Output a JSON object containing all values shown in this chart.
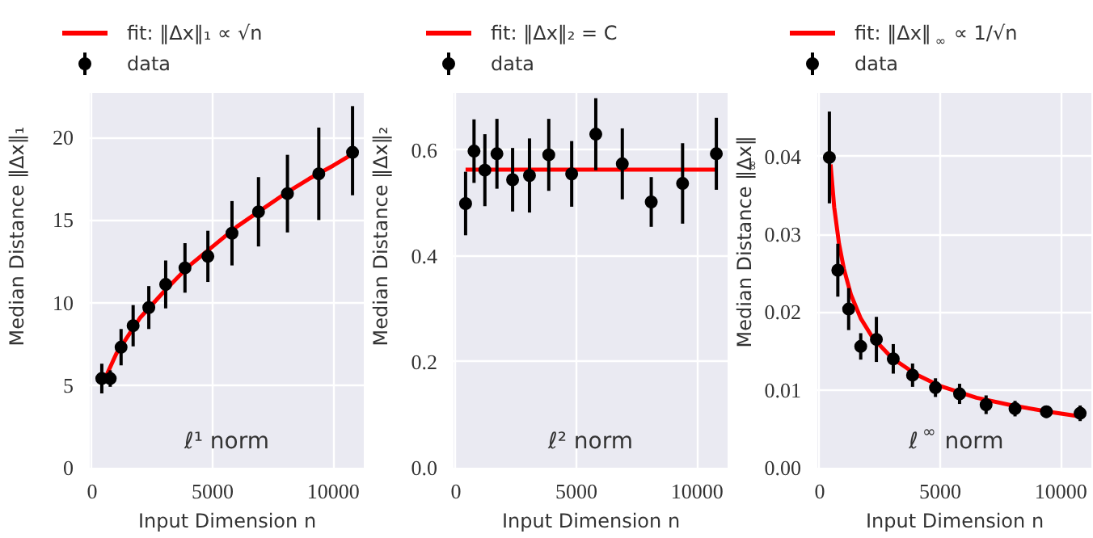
{
  "chart_data": [
    {
      "type": "scatter",
      "xlabel": "Input Dimension n",
      "ylabel": "Median Distance ‖Δx‖₁",
      "annotations": [
        "ℓ¹ norm"
      ],
      "xlim": [
        -100,
        11300
      ],
      "ylim": [
        0,
        22.7
      ],
      "xticks": [
        0,
        5000,
        10000
      ],
      "yticks": [
        0,
        5,
        10,
        15,
        20
      ],
      "grid": true,
      "legend": "top",
      "series": [
        {
          "name": "fit: ‖Δx‖₁ ∝ √n",
          "type": "line",
          "color": "#ff0000",
          "line_style": "solid",
          "x": [
            500,
            1000,
            2000,
            3000,
            4000,
            5000,
            6000,
            7000,
            8000,
            9000,
            10000,
            10800
          ],
          "values": [
            5.3,
            6.9,
            9.1,
            10.7,
            12.2,
            13.4,
            14.6,
            15.6,
            16.6,
            17.5,
            18.3,
            19.0
          ]
        },
        {
          "name": "data",
          "color": "#000000",
          "marker": "circle",
          "x": [
            400,
            750,
            1200,
            1700,
            2350,
            3050,
            3850,
            4800,
            5800,
            6900,
            8100,
            9400,
            10800
          ],
          "values": [
            5.4,
            5.4,
            7.3,
            8.6,
            9.7,
            11.1,
            12.1,
            12.8,
            14.2,
            15.5,
            16.6,
            17.8,
            19.1
          ],
          "errors": [
            0.9,
            0.5,
            1.1,
            1.25,
            1.3,
            1.45,
            1.5,
            1.55,
            1.95,
            2.1,
            2.35,
            2.8,
            [
              16.5,
              21.9
            ]
          ]
        }
      ]
    },
    {
      "type": "scatter",
      "xlabel": "Input Dimension n",
      "ylabel": "Median Distance ‖Δx‖₂",
      "annotations": [
        "ℓ² norm"
      ],
      "xlim": [
        -100,
        11300
      ],
      "ylim": [
        0,
        0.708
      ],
      "xticks": [
        0,
        5000,
        10000
      ],
      "yticks": [
        {
          "value": 0,
          "label": "0.0"
        },
        {
          "value": 0.2,
          "label": "0.2"
        },
        {
          "value": 0.4,
          "label": "0.4"
        },
        {
          "value": 0.6,
          "label": "0.6"
        }
      ],
      "grid": true,
      "legend": "top",
      "series": [
        {
          "name": "fit: ‖Δx‖₂ = C",
          "type": "line",
          "color": "#ff0000",
          "line_style": "solid",
          "x": [
            400,
            10800
          ],
          "values": [
            0.563,
            0.563
          ]
        },
        {
          "name": "data",
          "color": "#000000",
          "marker": "circle",
          "x": [
            400,
            750,
            1200,
            1700,
            2350,
            3050,
            3850,
            4800,
            5800,
            6900,
            8100,
            9400,
            10800
          ],
          "values": [
            0.499,
            0.598,
            0.562,
            0.593,
            0.544,
            0.552,
            0.591,
            0.555,
            0.63,
            0.574,
            0.502,
            0.537,
            0.593
          ],
          "errors": [
            0.06,
            0.06,
            0.068,
            0.066,
            0.06,
            0.07,
            0.068,
            0.062,
            0.068,
            0.067,
            0.047,
            0.076,
            0.068
          ]
        }
      ]
    },
    {
      "type": "scatter",
      "xlabel": "Input Dimension n",
      "ylabel": "Median Distance ‖Δx‖$_{∞}$",
      "annotations": [
        "ℓ$^{∞}$ norm"
      ],
      "xlim": [
        -100,
        11300
      ],
      "ylim": [
        0,
        0.0482
      ],
      "xticks": [
        0,
        5000,
        10000
      ],
      "yticks": [
        {
          "value": 0,
          "label": "0.00"
        },
        {
          "value": 0.01,
          "label": "0.01"
        },
        {
          "value": 0.02,
          "label": "0.02"
        },
        {
          "value": 0.03,
          "label": "0.03"
        },
        {
          "value": 0.04,
          "label": "0.04"
        }
      ],
      "grid": true,
      "legend": "top",
      "series": [
        {
          "name": "fit: ‖Δx‖$_{∞}$ ∝ 1/√n",
          "type": "line",
          "color": "#ff0000",
          "line_style": "solid",
          "x": [
            450,
            600,
            800,
            1000,
            1300,
            1700,
            2200,
            3000,
            4000,
            5000,
            6500,
            8000,
            9500,
            10800
          ],
          "values": [
            0.039,
            0.0335,
            0.0288,
            0.0256,
            0.0222,
            0.0192,
            0.0167,
            0.0141,
            0.012,
            0.0105,
            0.009,
            0.008,
            0.0072,
            0.0066
          ]
        },
        {
          "name": "data",
          "color": "#000000",
          "marker": "circle",
          "x": [
            400,
            750,
            1200,
            1700,
            2350,
            3050,
            3850,
            4800,
            5800,
            6900,
            8100,
            9400,
            10800
          ],
          "values": [
            0.0399,
            0.0254,
            0.0204,
            0.0156,
            0.0165,
            0.014,
            0.0119,
            0.0103,
            0.0095,
            0.0081,
            0.0076,
            0.0072,
            0.007
          ],
          "errors": [
            0.0059,
            0.0034,
            0.0027,
            0.0017,
            0.0029,
            0.0019,
            0.0015,
            0.0012,
            0.0013,
            0.0012,
            0.001,
            0.0008,
            0.001
          ]
        }
      ]
    }
  ]
}
